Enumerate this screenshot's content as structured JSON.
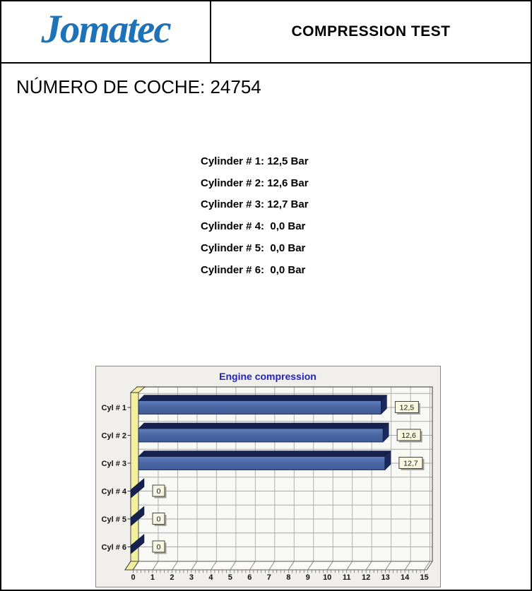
{
  "header": {
    "logo_text": "Jomatec",
    "logo_color": "#1e73b8",
    "title": "COMPRESSION TEST"
  },
  "car_number": {
    "text": "NÚMERO DE COCHE: 24754"
  },
  "readings": {
    "lines": [
      "Cylinder # 1: 12,5 Bar",
      "Cylinder # 2: 12,6 Bar",
      "Cylinder # 3: 12,7 Bar",
      "Cylinder # 4:  0,0 Bar",
      "Cylinder # 5:  0,0 Bar",
      "Cylinder # 6:  0,0 Bar"
    ]
  },
  "chart_data": {
    "type": "bar",
    "orientation": "horizontal",
    "title": "Engine compression",
    "categories": [
      "Cyl # 1",
      "Cyl # 2",
      "Cyl # 3",
      "Cyl # 4",
      "Cyl # 5",
      "Cyl # 6"
    ],
    "values": [
      12.5,
      12.6,
      12.7,
      0,
      0,
      0
    ],
    "value_labels": [
      "12,5",
      "12,6",
      "12,7",
      "0",
      "0",
      "0"
    ],
    "unit": "Bar",
    "xlim": [
      0,
      15
    ],
    "xticks": [
      0,
      1,
      2,
      3,
      4,
      5,
      6,
      7,
      8,
      9,
      10,
      11,
      12,
      13,
      14,
      15
    ],
    "grid": true,
    "legend": false,
    "colors": {
      "title": "#2323bb",
      "panel_bg": "#f0efec",
      "plot_bg": "#f8f8f5",
      "grid": "#a8a8a8",
      "border": "#5a5a5a",
      "wall": "#f2ef9f",
      "bar_front_light": "#6280bd",
      "bar_front": "#4a67a3",
      "bar_front_dark": "#3f5c98",
      "bar_top": "#16214f",
      "bar_side": "#1b2a5e",
      "bar_outline": "#101c44",
      "value_box_bg": "#fbf8e2",
      "value_box_border": "#444444",
      "value_box_shadow": "#a0a098",
      "floor": "#fbfbf8",
      "text": "#111111"
    }
  }
}
